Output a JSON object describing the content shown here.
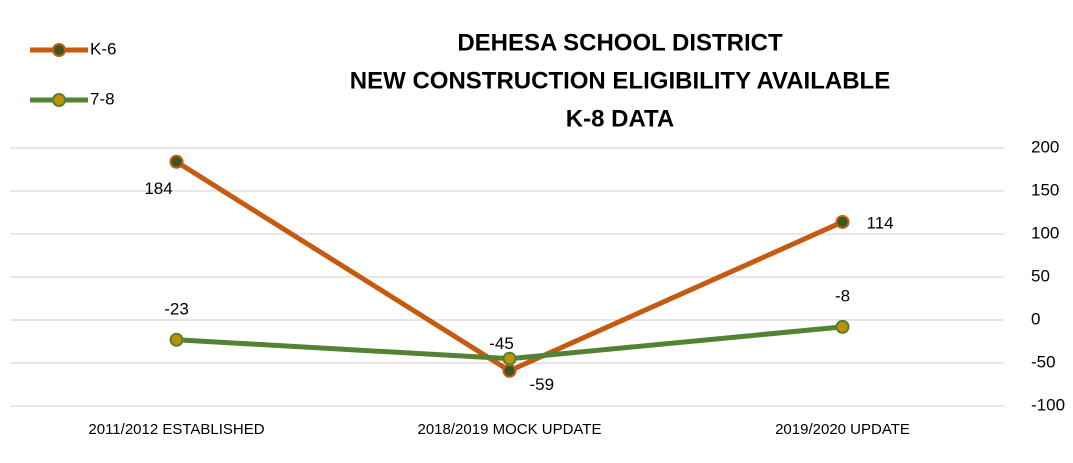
{
  "chart_data": {
    "type": "line",
    "title": [
      "DEHESA SCHOOL DISTRICT",
      "NEW CONSTRUCTION ELIGIBILITY AVAILABLE",
      "K-8 DATA"
    ],
    "categories": [
      "2011/2012 ESTABLISHED",
      "2018/2019 MOCK UPDATE",
      "2019/2020 UPDATE"
    ],
    "series": [
      {
        "name": "K-6",
        "color": "#c55a11",
        "marker_color": "#385723",
        "values": [
          184,
          -59,
          114
        ]
      },
      {
        "name": "7-8",
        "color": "#548235",
        "marker_color": "#bf9000",
        "values": [
          -23,
          -45,
          -8
        ]
      }
    ],
    "ylim": [
      -100,
      200
    ],
    "yticks": [
      -100,
      -50,
      0,
      50,
      100,
      150,
      200
    ],
    "grid": true,
    "legend": "top-left",
    "y_axis_side": "right"
  }
}
